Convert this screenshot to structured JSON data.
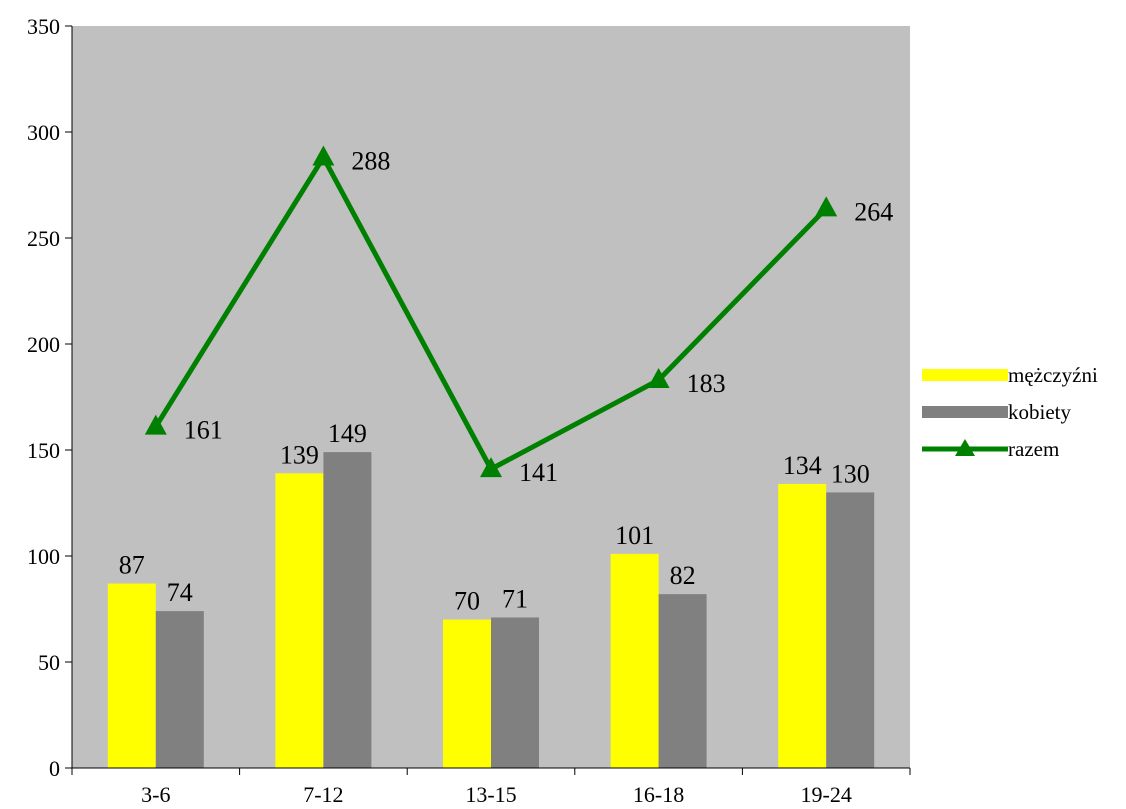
{
  "chart_data": {
    "type": "bar",
    "categories": [
      "3-6",
      "7-12",
      "13-15",
      "16-18",
      "19-24"
    ],
    "series": [
      {
        "name": "mężczyźni",
        "type": "bar",
        "color": "#FFFF00",
        "values": [
          87,
          139,
          70,
          101,
          134
        ]
      },
      {
        "name": "kobiety",
        "type": "bar",
        "color": "#808080",
        "values": [
          74,
          149,
          71,
          82,
          130
        ]
      },
      {
        "name": "razem",
        "type": "line",
        "marker": "triangle",
        "color": "#008000",
        "values": [
          161,
          288,
          141,
          183,
          264
        ]
      }
    ],
    "y_ticks": [
      "0",
      "50",
      "100",
      "150",
      "200",
      "250",
      "300",
      "350"
    ],
    "ylim": [
      0,
      350
    ],
    "plot_background": "#C0C0C0",
    "grid": false,
    "data_labels": true,
    "legend_position": "right"
  }
}
